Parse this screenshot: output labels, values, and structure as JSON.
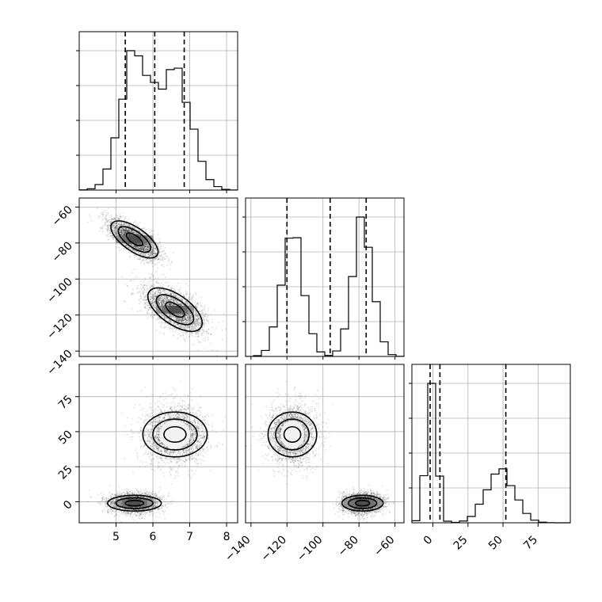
{
  "chart_data": {
    "type": "corner",
    "grid": true,
    "parameters": [
      {
        "range": [
          4.0,
          8.3
        ],
        "ticks": [
          5,
          6,
          7,
          8
        ],
        "tick_labels": [
          "5",
          "6",
          "7",
          "8"
        ],
        "modes": [
          {
            "mean": 5.5,
            "sd": 0.38,
            "weight": 0.5
          },
          {
            "mean": 6.6,
            "sd": 0.43,
            "weight": 0.5
          }
        ],
        "quantiles": [
          5.25,
          6.05,
          6.85
        ]
      },
      {
        "range": [
          -143,
          -55
        ],
        "ticks": [
          -60,
          -80,
          -100,
          -120,
          -140
        ],
        "tick_labels": [
          "−60",
          "−80",
          "−100",
          "−120",
          "−140"
        ],
        "modes": [
          {
            "mean": -78,
            "sd": 5.5,
            "weight": 0.5
          },
          {
            "mean": -117,
            "sd": 6.0,
            "weight": 0.5
          }
        ],
        "quantiles": [
          -120,
          -96,
          -76
        ]
      },
      {
        "range": [
          -15,
          98
        ],
        "ticks": [
          0,
          25,
          50,
          75
        ],
        "tick_labels": [
          "0",
          "25",
          "50",
          "75"
        ],
        "modes": [
          {
            "mean": -1,
            "sd": 3.5,
            "weight": 0.5
          },
          {
            "mean": 48,
            "sd": 10,
            "weight": 0.5
          }
        ],
        "quantiles": [
          -2,
          5,
          52
        ]
      }
    ],
    "clusters": [
      {
        "means": [
          5.5,
          -78,
          -1
        ],
        "sds": [
          0.35,
          5.5,
          3.5
        ],
        "correlations": {
          "p0_p1": -0.75,
          "p0_p2": 0.1,
          "p1_p2": 0.0
        }
      },
      {
        "means": [
          6.6,
          -117,
          48
        ],
        "sds": [
          0.42,
          6.5,
          10
        ],
        "correlations": {
          "p0_p1": -0.6,
          "p0_p2": 0.0,
          "p1_p2": 0.0
        }
      }
    ],
    "histogram_bins": 20,
    "y_tick_label_rotation": -45,
    "x_tick_label_rotation": -45
  }
}
